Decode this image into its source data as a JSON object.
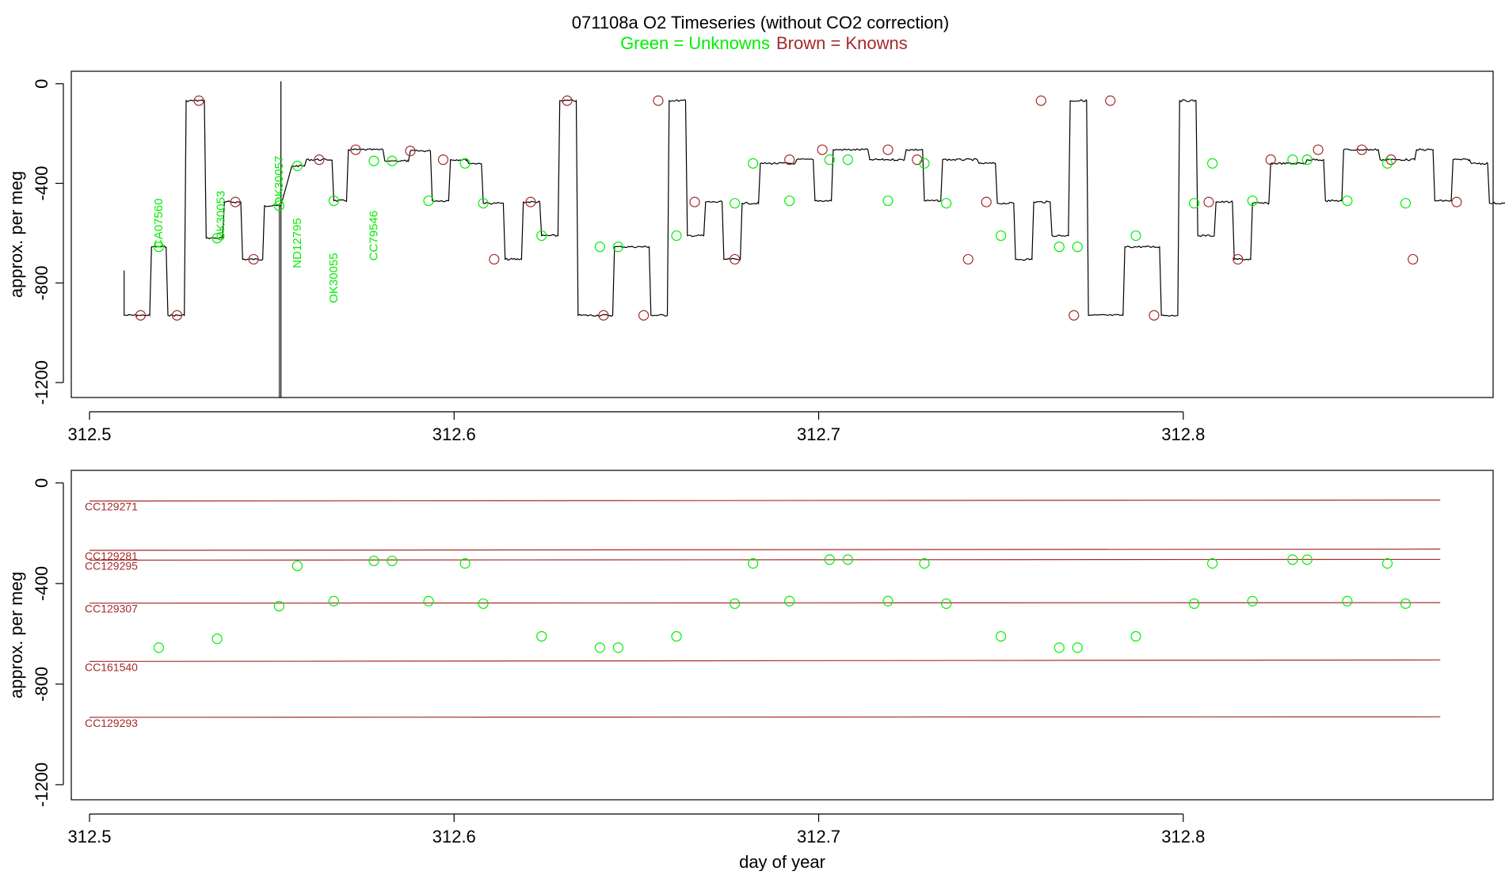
{
  "header": {
    "title": "071108a   O2 Timeseries (without CO2 correction)",
    "legend_unknowns": "Green = Unknowns",
    "legend_knowns": "Brown = Knowns"
  },
  "colors": {
    "unknown": "#00ee00",
    "known": "#a52a2a",
    "trace": "#000000",
    "axis": "#000000"
  },
  "chart_data": [
    {
      "type": "line",
      "panel": "top",
      "title": "",
      "xlabel": "",
      "ylabel": "approx. per meg",
      "xlim": [
        312.495,
        312.885
      ],
      "ylim": [
        -1260,
        50
      ],
      "x_ticks": [
        312.5,
        312.6,
        312.7,
        312.8
      ],
      "x_tick_labels": [
        "312.5",
        "312.6",
        "312.7",
        "312.8"
      ],
      "y_ticks": [
        0,
        -400,
        -800,
        -1200
      ],
      "y_tick_labels": [
        "0",
        "-400",
        "-800",
        "-1200"
      ],
      "trace_steps": [
        [
          312.5095,
          312.513,
          -930
        ],
        [
          312.5135,
          312.5155,
          -930
        ],
        [
          312.5155,
          312.5165,
          -930
        ],
        [
          312.517,
          312.521,
          -655
        ],
        [
          312.5215,
          312.526,
          -930
        ],
        [
          312.5265,
          312.5315,
          -68
        ],
        [
          312.532,
          312.5365,
          -620
        ],
        [
          312.537,
          312.5415,
          -475
        ],
        [
          312.542,
          312.5475,
          -705
        ],
        [
          312.548,
          312.5525,
          -490
        ],
        [
          312.5555,
          312.559,
          -330
        ],
        [
          312.5595,
          312.5665,
          -305
        ],
        [
          312.567,
          312.5705,
          -470
        ],
        [
          312.571,
          312.5805,
          -265
        ],
        [
          312.581,
          312.5825,
          -310
        ],
        [
          312.5835,
          312.5875,
          -310
        ],
        [
          312.588,
          312.5935,
          -270
        ],
        [
          312.594,
          312.5985,
          -470
        ],
        [
          312.599,
          312.6035,
          -305
        ],
        [
          312.604,
          312.6075,
          -320
        ],
        [
          312.608,
          312.6135,
          -480
        ],
        [
          312.614,
          312.6185,
          -705
        ],
        [
          312.619,
          312.6235,
          -475
        ],
        [
          312.624,
          312.6285,
          -610
        ],
        [
          312.629,
          312.6335,
          -68
        ],
        [
          312.634,
          312.6435,
          -930
        ],
        [
          312.644,
          312.6535,
          -655
        ],
        [
          312.654,
          312.6585,
          -930
        ],
        [
          312.659,
          312.6635,
          -68
        ],
        [
          312.664,
          312.6685,
          -610
        ],
        [
          312.669,
          312.6735,
          -475
        ],
        [
          312.674,
          312.6785,
          -705
        ],
        [
          312.679,
          312.6835,
          -480
        ],
        [
          312.684,
          312.6935,
          -320
        ],
        [
          312.694,
          312.6985,
          -305
        ],
        [
          312.699,
          312.7035,
          -470
        ],
        [
          312.704,
          312.7135,
          -265
        ],
        [
          312.714,
          312.7185,
          -305
        ],
        [
          312.719,
          312.7235,
          -305
        ],
        [
          312.724,
          312.7285,
          -265
        ],
        [
          312.729,
          312.7335,
          -470
        ],
        [
          312.734,
          312.7435,
          -305
        ],
        [
          312.744,
          312.7485,
          -320
        ],
        [
          312.749,
          312.7535,
          -480
        ],
        [
          312.754,
          312.7585,
          -705
        ],
        [
          312.759,
          312.7635,
          -475
        ],
        [
          312.764,
          312.7685,
          -610
        ],
        [
          312.769,
          312.7735,
          -68
        ],
        [
          312.774,
          312.7835,
          -930
        ],
        [
          312.784,
          312.7935,
          -655
        ],
        [
          312.794,
          312.7985,
          -930
        ],
        [
          312.799,
          312.8035,
          -68
        ],
        [
          312.804,
          312.8085,
          -610
        ],
        [
          312.809,
          312.8135,
          -475
        ],
        [
          312.814,
          312.8185,
          -705
        ],
        [
          312.819,
          312.8235,
          -480
        ],
        [
          312.824,
          312.8335,
          -320
        ],
        [
          312.834,
          312.8385,
          -305
        ],
        [
          312.839,
          312.8435,
          -470
        ],
        [
          312.844,
          312.8535,
          -265
        ],
        [
          312.854,
          312.8585,
          -305
        ],
        [
          312.859,
          312.8635,
          -305
        ],
        [
          312.864,
          312.8685,
          -265
        ],
        [
          312.869,
          312.8735,
          -470
        ],
        [
          312.874,
          312.8785,
          -305
        ],
        [
          312.879,
          312.8835,
          -320
        ],
        [
          312.884,
          312.889,
          -480
        ],
        [
          312.8895,
          312.8945,
          -705
        ],
        [
          312.895,
          312.8975,
          -475
        ]
      ],
      "spike": {
        "x": 312.5525,
        "y_top": 10,
        "y_bottom": -1260
      },
      "known_points": [
        [
          312.514,
          -930
        ],
        [
          312.524,
          -930
        ],
        [
          312.53,
          -68
        ],
        [
          312.54,
          -475
        ],
        [
          312.545,
          -705
        ],
        [
          312.563,
          -305
        ],
        [
          312.573,
          -265
        ],
        [
          312.588,
          -270
        ],
        [
          312.597,
          -305
        ],
        [
          312.611,
          -705
        ],
        [
          312.621,
          -475
        ],
        [
          312.631,
          -68
        ],
        [
          312.641,
          -930
        ],
        [
          312.652,
          -930
        ],
        [
          312.656,
          -68
        ],
        [
          312.666,
          -475
        ],
        [
          312.677,
          -705
        ],
        [
          312.692,
          -305
        ],
        [
          312.701,
          -265
        ],
        [
          312.719,
          -265
        ],
        [
          312.727,
          -305
        ],
        [
          312.741,
          -705
        ],
        [
          312.746,
          -475
        ],
        [
          312.761,
          -68
        ],
        [
          312.77,
          -930
        ],
        [
          312.78,
          -68
        ],
        [
          312.792,
          -930
        ],
        [
          312.807,
          -475
        ],
        [
          312.815,
          -705
        ],
        [
          312.824,
          -305
        ],
        [
          312.837,
          -265
        ],
        [
          312.849,
          -265
        ],
        [
          312.857,
          -305
        ],
        [
          312.863,
          -705
        ],
        [
          312.875,
          -475
        ]
      ],
      "unknown_points": [
        [
          312.519,
          -655
        ],
        [
          312.535,
          -620
        ],
        [
          312.552,
          -490
        ],
        [
          312.557,
          -330
        ],
        [
          312.567,
          -470
        ],
        [
          312.578,
          -310
        ],
        [
          312.583,
          -310
        ],
        [
          312.593,
          -470
        ],
        [
          312.603,
          -320
        ],
        [
          312.608,
          -480
        ],
        [
          312.624,
          -610
        ],
        [
          312.64,
          -655
        ],
        [
          312.645,
          -655
        ],
        [
          312.661,
          -610
        ],
        [
          312.677,
          -480
        ],
        [
          312.682,
          -320
        ],
        [
          312.692,
          -470
        ],
        [
          312.703,
          -305
        ],
        [
          312.708,
          -305
        ],
        [
          312.719,
          -470
        ],
        [
          312.729,
          -320
        ],
        [
          312.735,
          -480
        ],
        [
          312.75,
          -610
        ],
        [
          312.766,
          -655
        ],
        [
          312.771,
          -655
        ],
        [
          312.787,
          -610
        ],
        [
          312.803,
          -480
        ],
        [
          312.808,
          -320
        ],
        [
          312.819,
          -470
        ],
        [
          312.83,
          -305
        ],
        [
          312.834,
          -305
        ],
        [
          312.845,
          -470
        ],
        [
          312.856,
          -320
        ],
        [
          312.861,
          -480
        ]
      ],
      "annotations": [
        {
          "text": "CA07560",
          "x": 312.52,
          "y": -560
        },
        {
          "text": "OK30053",
          "x": 312.537,
          "y": -530
        },
        {
          "text": "OK30057",
          "x": 312.553,
          "y": -390
        },
        {
          "text": "ND12795",
          "x": 312.558,
          "y": -640
        },
        {
          "text": "OK30055",
          "x": 312.568,
          "y": -780
        },
        {
          "text": "CC79546",
          "x": 312.579,
          "y": -610
        }
      ]
    },
    {
      "type": "scatter",
      "panel": "bottom",
      "title": "",
      "xlabel": "day of year",
      "ylabel": "approx. per meg",
      "xlim": [
        312.495,
        312.885
      ],
      "ylim": [
        -1260,
        50
      ],
      "x_ticks": [
        312.5,
        312.6,
        312.7,
        312.8
      ],
      "x_tick_labels": [
        "312.5",
        "312.6",
        "312.7",
        "312.8"
      ],
      "y_ticks": [
        0,
        -400,
        -800,
        -1200
      ],
      "y_tick_labels": [
        "0",
        "-400",
        "-800",
        "-1200"
      ],
      "x_range": [
        312.5,
        312.8705
      ],
      "reference_lines": [
        {
          "name": "CC129271",
          "y_start": -72,
          "y_end": -68
        },
        {
          "name": "CC129281",
          "y_start": -268,
          "y_end": -263
        },
        {
          "name": "CC129295",
          "y_start": -307,
          "y_end": -304
        },
        {
          "name": "CC129307",
          "y_start": -478,
          "y_end": -476
        },
        {
          "name": "CC161540",
          "y_start": -710,
          "y_end": -704
        },
        {
          "name": "CC129293",
          "y_start": -932,
          "y_end": -930
        }
      ],
      "unknown_points": [
        [
          312.519,
          -655
        ],
        [
          312.535,
          -620
        ],
        [
          312.552,
          -490
        ],
        [
          312.557,
          -330
        ],
        [
          312.567,
          -470
        ],
        [
          312.578,
          -310
        ],
        [
          312.583,
          -310
        ],
        [
          312.593,
          -470
        ],
        [
          312.603,
          -320
        ],
        [
          312.608,
          -480
        ],
        [
          312.624,
          -610
        ],
        [
          312.64,
          -655
        ],
        [
          312.645,
          -655
        ],
        [
          312.661,
          -610
        ],
        [
          312.677,
          -480
        ],
        [
          312.682,
          -320
        ],
        [
          312.692,
          -470
        ],
        [
          312.703,
          -305
        ],
        [
          312.708,
          -305
        ],
        [
          312.719,
          -470
        ],
        [
          312.729,
          -320
        ],
        [
          312.735,
          -480
        ],
        [
          312.75,
          -610
        ],
        [
          312.766,
          -655
        ],
        [
          312.771,
          -655
        ],
        [
          312.787,
          -610
        ],
        [
          312.803,
          -480
        ],
        [
          312.808,
          -320
        ],
        [
          312.819,
          -470
        ],
        [
          312.83,
          -305
        ],
        [
          312.834,
          -305
        ],
        [
          312.845,
          -470
        ],
        [
          312.856,
          -320
        ],
        [
          312.861,
          -480
        ]
      ]
    }
  ]
}
